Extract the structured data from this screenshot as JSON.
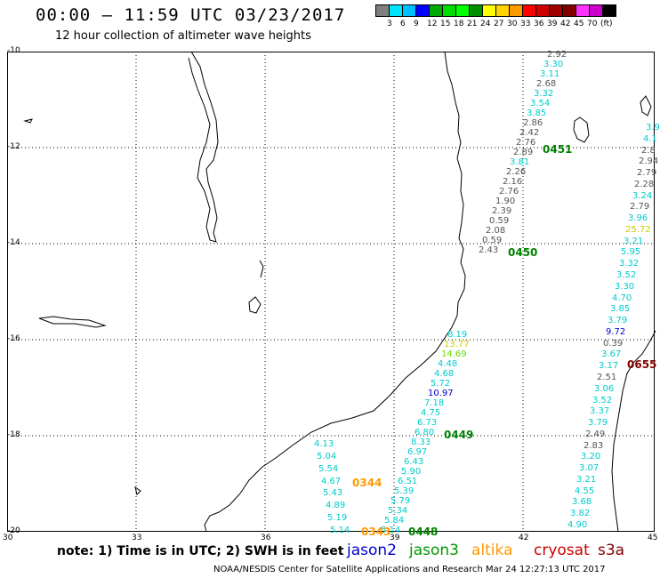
{
  "header": {
    "title": "00:00 – 11:59 UTC 03/23/2017",
    "subtitle": "12 hour collection of altimeter wave heights"
  },
  "scale": {
    "colors": [
      "#7f7f7f",
      "#00e5ff",
      "#00bfff",
      "#0000ff",
      "#00aa00",
      "#00dd00",
      "#00ff00",
      "#009000",
      "#ffff00",
      "#ffd400",
      "#ff9900",
      "#ff0000",
      "#d00000",
      "#a00000",
      "#800000",
      "#ff33ff",
      "#cc00cc",
      "#000000"
    ],
    "labels": [
      "3",
      "6",
      "9",
      "12",
      "15",
      "18",
      "21",
      "24",
      "27",
      "30",
      "33",
      "36",
      "39",
      "42",
      "45",
      "70",
      "(ft)"
    ]
  },
  "axes": {
    "lat_labels": [
      "-10",
      "-12",
      "-14",
      "-16",
      "-18",
      "-20"
    ],
    "lon_labels": [
      "30",
      "33",
      "36",
      "39",
      "42",
      "45"
    ]
  },
  "tracks": {
    "jason3_a": {
      "color": "#00cccc",
      "readings": [
        "8.19",
        "13.77",
        "14.69",
        "4.48",
        "4.68",
        "5.72",
        "10.97",
        "7.18",
        "4.75",
        "6.73",
        "6.80",
        "8.33",
        "6.97",
        "6.43",
        "5.90",
        "6.51",
        "5.39",
        "5.79",
        "5.34",
        "5.84",
        "5.14"
      ],
      "colors": [
        "#00cccc",
        "#cccc00",
        "#66dd00",
        "#00cccc",
        "#00cccc",
        "#00cccc",
        "#0000cc",
        "#00cccc",
        "#00cccc",
        "#00cccc",
        "#00cccc",
        "#00cccc",
        "#00cccc",
        "#00cccc",
        "#00cccc",
        "#00cccc",
        "#00cccc",
        "#00cccc",
        "#00cccc",
        "#00cccc",
        "#00cccc"
      ]
    },
    "altika_a": {
      "readings": [
        "4.13",
        "5.04",
        "5.54",
        "4.67",
        "5.43",
        "4.89",
        "5.19",
        "5.14"
      ]
    },
    "north": {
      "readings": [
        "2.92",
        "3.30",
        "3.11",
        "2.68",
        "3.32",
        "3.54",
        "3.85",
        "2.86",
        "2.42",
        "2.76",
        "2.89",
        "3.81",
        "2.26",
        "2.16",
        "2.76",
        "1.90",
        "2.39",
        "0.59",
        "2.08",
        "0.59",
        "2.43"
      ],
      "colors": [
        "#555555",
        "#00cccc",
        "#00cccc",
        "#555555",
        "#00cccc",
        "#00cccc",
        "#00cccc",
        "#555555",
        "#555555",
        "#555555",
        "#555555",
        "#00cccc",
        "#555555",
        "#555555",
        "#555555",
        "#555555",
        "#555555",
        "#555555",
        "#555555",
        "#555555",
        "#555555"
      ]
    },
    "east": {
      "readings": [
        "3.9",
        "4.1",
        "2.8",
        "2.94",
        "2.79",
        "2.28",
        "3.24",
        "2.79",
        "3.96",
        "25.72",
        "3.21",
        "5.95",
        "3.32",
        "3.52",
        "3.30",
        "4.70",
        "3.85",
        "3.79",
        "9.72",
        "0.39",
        "3.67",
        "3.17",
        "2.51",
        "3.06",
        "3.52",
        "3.37",
        "3.79",
        "2.49",
        "2.83",
        "3.20",
        "3.07",
        "3.21",
        "4.55",
        "3.68",
        "3.82",
        "4.90"
      ],
      "colors": [
        "#00cccc",
        "#00cccc",
        "#555555",
        "#555555",
        "#555555",
        "#555555",
        "#00cccc",
        "#555555",
        "#00cccc",
        "#cccc00",
        "#00cccc",
        "#00cccc",
        "#00cccc",
        "#00cccc",
        "#00cccc",
        "#00cccc",
        "#00cccc",
        "#00cccc",
        "#0000cc",
        "#555555",
        "#00cccc",
        "#00cccc",
        "#555555",
        "#00cccc",
        "#00cccc",
        "#00cccc",
        "#00cccc",
        "#555555",
        "#555555",
        "#00cccc",
        "#00cccc",
        "#00cccc",
        "#00cccc",
        "#00cccc",
        "#00cccc",
        "#00cccc"
      ]
    }
  },
  "pass_times": {
    "t0451": "0451",
    "t0450": "0450",
    "t0449": "0449",
    "t0448": "0448",
    "t0344": "0344",
    "t0343": "0343",
    "t0655": "0655"
  },
  "footer": {
    "note": "note: 1) Time is in UTC; 2) SWH is in feet",
    "legend": [
      {
        "name": "jason2",
        "color": "#0000cc"
      },
      {
        "name": "jason3",
        "color": "#009900"
      },
      {
        "name": "altika",
        "color": "#ff9900"
      },
      {
        "name": "cryosat",
        "color": "#cc0000"
      },
      {
        "name": "s3a",
        "color": "#800000"
      }
    ],
    "credit": "NOAA/NESDIS Center for Satellite Applications and Research    Mar 24 12:27:13 UTC 2017"
  }
}
